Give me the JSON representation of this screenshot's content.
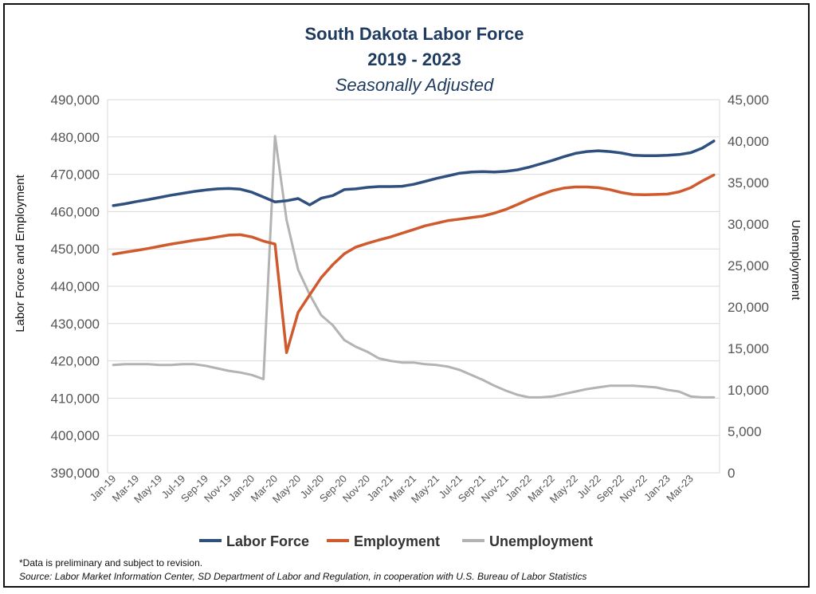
{
  "chart_data": {
    "type": "line",
    "title": "South Dakota Labor Force",
    "title_line2": "2019 - 2023",
    "subtitle": "Seasonally Adjusted",
    "ylabel_left": "Labor  Force and Employment",
    "ylabel_right": "Unemployment",
    "ylim_left": [
      390000,
      490000
    ],
    "ylim_right": [
      0,
      45000
    ],
    "left_ticks": [
      "390,000",
      "400,000",
      "410,000",
      "420,000",
      "430,000",
      "440,000",
      "450,000",
      "460,000",
      "470,000",
      "480,000",
      "490,000"
    ],
    "right_ticks": [
      "0",
      "5,000",
      "10,000",
      "15,000",
      "20,000",
      "25,000",
      "30,000",
      "35,000",
      "40,000",
      "45,000"
    ],
    "x_tick_labels": [
      "Jan-19",
      "Mar-19",
      "May-19",
      "Jul-19",
      "Sep-19",
      "Nov-19",
      "Jan-20",
      "Mar-20",
      "May-20",
      "Jul-20",
      "Sep-20",
      "Nov-20",
      "Jan-21",
      "Mar-21",
      "May-21",
      "Jul-21",
      "Sep-21",
      "Nov-21",
      "Jan-22",
      "Mar-22",
      "May-22",
      "Jul-22",
      "Sep-22",
      "Nov-22",
      "Jan-23",
      "Mar-23"
    ],
    "grid": true,
    "legend_position": "bottom",
    "series": [
      {
        "name": "Labor Force",
        "color": "#2f4f7f",
        "axis": "left",
        "values": [
          461600,
          462100,
          462700,
          463200,
          463800,
          464400,
          464900,
          465400,
          465800,
          466100,
          466200,
          466000,
          465200,
          463900,
          462600,
          462900,
          463500,
          461800,
          463600,
          464300,
          465900,
          466100,
          466500,
          466700,
          466700,
          466800,
          467300,
          468100,
          468900,
          469600,
          470300,
          470600,
          470700,
          470600,
          470800,
          471200,
          471900,
          472800,
          473700,
          474700,
          475600,
          476100,
          476300,
          476100,
          475700,
          475100,
          475000,
          475000,
          475100,
          475300,
          475800,
          477000,
          478900
        ]
      },
      {
        "name": "Employment",
        "color": "#cf5a2e",
        "axis": "left",
        "values": [
          448600,
          449100,
          449600,
          450100,
          450700,
          451300,
          451800,
          452300,
          452700,
          453200,
          453700,
          453800,
          453200,
          452100,
          451300,
          422200,
          433000,
          437700,
          442300,
          445800,
          448700,
          450500,
          451500,
          452400,
          453200,
          454200,
          455200,
          456200,
          456900,
          457600,
          458000,
          458400,
          458800,
          459600,
          460600,
          461900,
          463300,
          464500,
          465600,
          466300,
          466600,
          466600,
          466400,
          465900,
          465100,
          464600,
          464500,
          464600,
          464700,
          465300,
          466400,
          468200,
          469800
        ]
      },
      {
        "name": "Unemployment",
        "color": "#b3b3b3",
        "axis": "right",
        "values": [
          13000,
          13100,
          13100,
          13100,
          13000,
          13000,
          13100,
          13100,
          12900,
          12600,
          12300,
          12100,
          11800,
          11300,
          40600,
          30500,
          24500,
          21500,
          19000,
          17800,
          16000,
          15200,
          14600,
          13800,
          13500,
          13300,
          13300,
          13100,
          13000,
          12800,
          12400,
          11800,
          11200,
          10500,
          9900,
          9400,
          9100,
          9100,
          9200,
          9500,
          9800,
          10100,
          10300,
          10500,
          10500,
          10500,
          10400,
          10300,
          10000,
          9800,
          9200,
          9100,
          9100
        ]
      }
    ],
    "footnote": "*Data is preliminary and subject to revision.",
    "source": "Source: Labor Market Information Center, SD Department of Labor and Regulation, in cooperation with U.S. Bureau of Labor Statistics"
  }
}
